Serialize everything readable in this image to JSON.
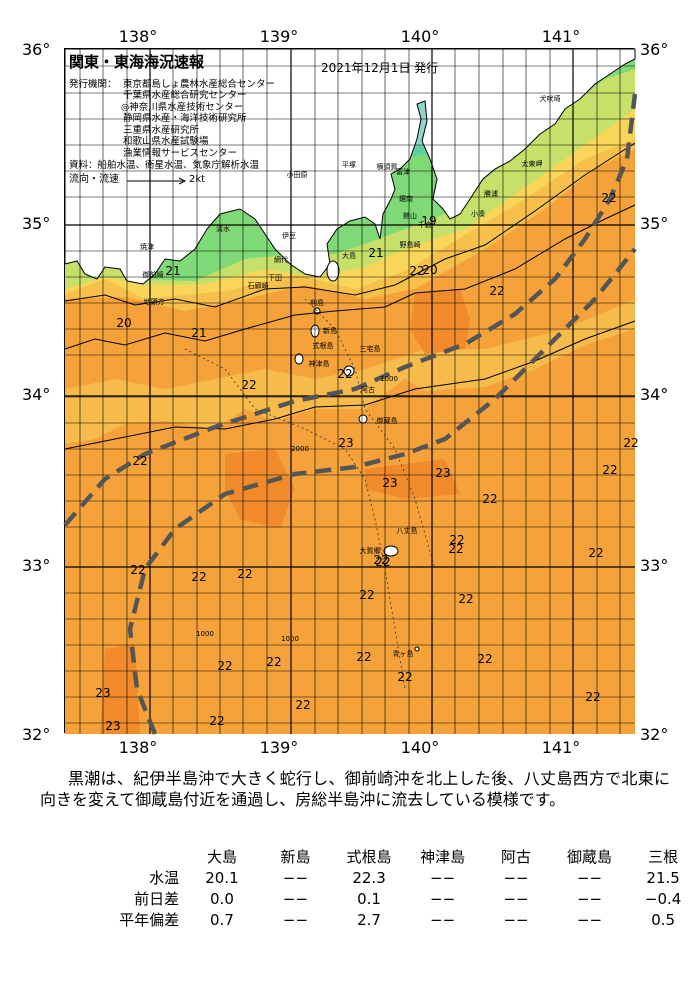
{
  "map": {
    "title": "関東・東海海況速報",
    "issue_date": "2021年12月1日 発行",
    "issuer_label": "発行機関：",
    "issuers": [
      "東京都島しょ農林水産総合センター",
      "千葉県水産総合研究センター",
      "◎神奈川県水産技術センター",
      "静岡県水産・海洋技術研究所",
      "三重県水産研究所",
      "和歌山県水産試験場",
      "漁業情報サービスセンター"
    ],
    "sources": "資料：船舶水温、衛星水温、気象庁解析水温",
    "flow_label": "流向・流速",
    "flow_scale": "2kt",
    "lon_labels_top": [
      "138°",
      "139°",
      "140°",
      "141°"
    ],
    "lon_labels_bottom": [
      "138°",
      "139°",
      "140°",
      "141°"
    ],
    "lat_labels_left": [
      "36°",
      "35°",
      "34°",
      "33°",
      "32°"
    ],
    "lat_labels_right": [
      "36°",
      "35°",
      "34°",
      "33°",
      "32°"
    ],
    "temp_labels": [
      "22",
      "21",
      "19",
      "20",
      "22",
      "20",
      "21",
      "22",
      "22",
      "23",
      "22",
      "23",
      "23",
      "22",
      "22",
      "22",
      "22",
      "22",
      "22",
      "22",
      "22",
      "22",
      "22",
      "22",
      "22",
      "23",
      "23",
      "22",
      "22",
      "22",
      "22",
      "22",
      "22",
      "22",
      "22",
      "21",
      "22",
      "22"
    ],
    "place_labels": [
      "犬吠埼",
      "太東岬",
      "勝浦",
      "小湊",
      "鋸南",
      "館山",
      "千倉",
      "野島崎",
      "大島",
      "平塚",
      "横須賀",
      "富津",
      "小田原",
      "伊豆",
      "石廊崎",
      "御前崎",
      "焼津",
      "清水",
      "下田",
      "網代",
      "地頭方",
      "利島",
      "新島",
      "式根島",
      "神津島",
      "三宅島",
      "阿古",
      "御蔵島",
      "八丈島",
      "大賀郷",
      "青ヶ島",
      "1000",
      "1000",
      "1000",
      "2000"
    ],
    "colors": {
      "land": "#ffffff",
      "sea_warm": "#f5a23a",
      "sea_hot": "#f08a2b",
      "sea_mid": "#f7c04a",
      "sea_cool": "#c6e06a",
      "sea_cold": "#7fd977",
      "sea_coast": "#5fcf9e",
      "sea_bay": "#8fd6c9",
      "kuroshio": "#555555"
    }
  },
  "description": "黒潮は、紀伊半島沖で大きく蛇行し、御前崎沖を北上した後、八丈島西方で北東に向きを変えて御蔵島付近を通過し、房総半島沖に流去している模様です。",
  "stats": {
    "headers": [
      "大島",
      "新島",
      "式根島",
      "神津島",
      "阿古",
      "御蔵島",
      "三根"
    ],
    "rows": [
      {
        "label": "水温",
        "values": [
          "20.1",
          "−−",
          "22.3",
          "−−",
          "−−",
          "−−",
          "21.5"
        ]
      },
      {
        "label": "前日差",
        "values": [
          "0.0",
          "−−",
          "0.1",
          "−−",
          "−−",
          "−−",
          "−0.4"
        ]
      },
      {
        "label": "平年偏差",
        "values": [
          "0.7",
          "−−",
          "2.7",
          "−−",
          "−−",
          "−−",
          "0.5"
        ]
      }
    ]
  }
}
